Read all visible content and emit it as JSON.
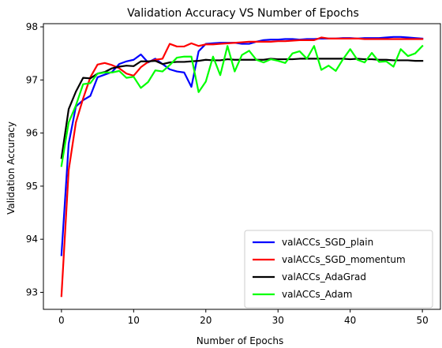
{
  "chart_data": {
    "type": "line",
    "title": "Validation Accuracy VS Number of Epochs",
    "xlabel": "Number of Epochs",
    "ylabel": "Validation Accuracy",
    "xlim": [
      -2.5,
      52.5
    ],
    "ylim": [
      92.68,
      98.06
    ],
    "xticks": [
      0,
      10,
      20,
      30,
      40,
      50
    ],
    "yticks": [
      93,
      94,
      95,
      96,
      97,
      98
    ],
    "grid": false,
    "legend_position": "lower-right",
    "x": [
      0,
      1,
      2,
      3,
      4,
      5,
      6,
      7,
      8,
      9,
      10,
      11,
      12,
      13,
      14,
      15,
      16,
      17,
      18,
      19,
      20,
      21,
      22,
      23,
      24,
      25,
      26,
      27,
      28,
      29,
      30,
      31,
      32,
      33,
      34,
      35,
      36,
      37,
      38,
      39,
      40,
      41,
      42,
      43,
      44,
      45,
      46,
      47,
      48,
      49,
      50
    ],
    "series": [
      {
        "name": "valACCs_SGD_plain",
        "color": "#0000ff",
        "values": [
          93.7,
          95.8,
          96.5,
          96.62,
          96.7,
          97.05,
          97.1,
          97.15,
          97.3,
          97.35,
          97.38,
          97.48,
          97.33,
          97.4,
          97.3,
          97.2,
          97.16,
          97.14,
          96.87,
          97.54,
          97.68,
          97.69,
          97.7,
          97.7,
          97.7,
          97.68,
          97.68,
          97.72,
          97.75,
          97.76,
          97.76,
          97.77,
          97.77,
          97.76,
          97.77,
          97.77,
          97.78,
          97.78,
          97.78,
          97.79,
          97.79,
          97.78,
          97.79,
          97.79,
          97.79,
          97.8,
          97.81,
          97.81,
          97.8,
          97.79,
          97.78
        ]
      },
      {
        "name": "valACCs_SGD_momentum",
        "color": "#ff0000",
        "values": [
          92.93,
          95.3,
          96.2,
          96.65,
          97.05,
          97.29,
          97.32,
          97.28,
          97.22,
          97.12,
          97.08,
          97.24,
          97.34,
          97.38,
          97.4,
          97.68,
          97.63,
          97.63,
          97.69,
          97.64,
          97.67,
          97.67,
          97.68,
          97.69,
          97.7,
          97.71,
          97.72,
          97.72,
          97.72,
          97.72,
          97.73,
          97.73,
          97.74,
          97.75,
          97.75,
          97.75,
          97.8,
          97.78,
          97.78,
          97.78,
          97.78,
          97.78,
          97.77,
          97.77,
          97.77,
          97.77,
          97.77,
          97.77,
          97.77,
          97.77,
          97.77
        ]
      },
      {
        "name": "valACCs_AdaGrad",
        "color": "#000000",
        "values": [
          95.53,
          96.45,
          96.78,
          97.04,
          97.03,
          97.12,
          97.15,
          97.22,
          97.25,
          97.27,
          97.26,
          97.35,
          97.35,
          97.36,
          97.3,
          97.33,
          97.34,
          97.34,
          97.35,
          97.36,
          97.38,
          97.37,
          97.37,
          97.39,
          97.38,
          97.38,
          97.38,
          97.38,
          97.38,
          97.4,
          97.39,
          97.39,
          97.39,
          97.4,
          97.4,
          97.4,
          97.4,
          97.4,
          97.4,
          97.4,
          97.39,
          97.4,
          97.39,
          97.39,
          97.38,
          97.38,
          97.37,
          97.37,
          97.37,
          97.36,
          97.36
        ]
      },
      {
        "name": "valACCs_Adam",
        "color": "#00ff00",
        "values": [
          95.38,
          96.2,
          96.52,
          96.92,
          96.94,
          97.12,
          97.14,
          97.14,
          97.17,
          97.04,
          97.06,
          96.85,
          96.96,
          97.18,
          97.16,
          97.28,
          97.42,
          97.44,
          97.44,
          96.77,
          96.97,
          97.44,
          97.09,
          97.64,
          97.16,
          97.47,
          97.55,
          97.38,
          97.33,
          97.39,
          97.36,
          97.32,
          97.5,
          97.54,
          97.4,
          97.64,
          97.19,
          97.27,
          97.17,
          97.39,
          97.58,
          97.38,
          97.33,
          97.51,
          97.34,
          97.35,
          97.25,
          97.58,
          97.45,
          97.5,
          97.64
        ]
      }
    ]
  }
}
